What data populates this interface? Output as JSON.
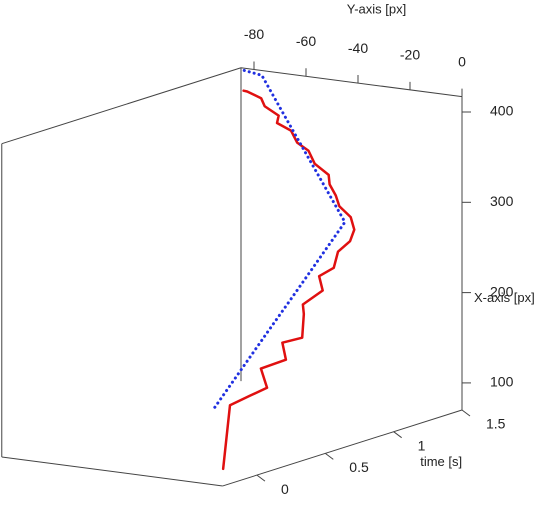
{
  "chart_data": {
    "type": "line3d",
    "x_axis_label": "X-axis [px]",
    "y_axis_label": "Y-axis [px]",
    "t_axis_label": "time [s]",
    "tlim": [
      -0.25,
      1.5
    ],
    "tticks": [
      0,
      0.5,
      1,
      1.5
    ],
    "ylim": [
      -85,
      0
    ],
    "yticks": [
      -80,
      -60,
      -40,
      -20,
      0
    ],
    "xlim": [
      70,
      417
    ],
    "xticks": [
      100,
      200,
      300,
      400
    ],
    "series": [
      {
        "color": "#e01010",
        "style": "solid",
        "t": [
          0,
          0.05,
          0.1,
          0.15,
          0.2,
          0.25,
          0.3,
          0.35,
          0.4,
          0.45,
          0.5,
          0.55,
          0.6,
          0.65,
          0.7,
          0.75,
          0.8,
          0.85,
          0.9,
          0.95,
          1.0,
          1.05,
          1.1,
          1.15,
          1.2,
          1.25,
          1.3,
          1.35,
          1.4,
          1.45,
          1.5
        ],
        "x": [
          72,
          140,
          150,
          158,
          175,
          185,
          200,
          205,
          228,
          235,
          250,
          262,
          270,
          285,
          295,
          305,
          315,
          322,
          330,
          338,
          345,
          352,
          362,
          366,
          375,
          378,
          383,
          388,
          393,
          395,
          392
        ],
        "y": [
          -13,
          -13,
          -8,
          -4,
          -9,
          -2,
          -6,
          -1,
          -3,
          -6,
          -1,
          -5,
          -2,
          -3,
          -1,
          -2,
          -6,
          -13,
          -17,
          -22,
          -25,
          -33,
          -38,
          -45,
          -50,
          -58,
          -60,
          -68,
          -72,
          -80,
          -84
        ]
      },
      {
        "color": "#2030e0",
        "style": "dotted",
        "t": [
          0,
          0.15,
          0.3,
          0.45,
          0.6,
          0.75,
          0.9,
          1.05,
          1.2,
          1.35,
          1.5
        ],
        "x": [
          139,
          173.6,
          208.2,
          242.8,
          277.4,
          312,
          339.5,
          366.9,
          394.4,
          421.8,
          415
        ],
        "y": [
          -16.2,
          -14.1,
          -12,
          -9.8,
          -7.7,
          -5.6,
          -21.5,
          -37.4,
          -53.3,
          -69.1,
          -85
        ]
      }
    ]
  }
}
